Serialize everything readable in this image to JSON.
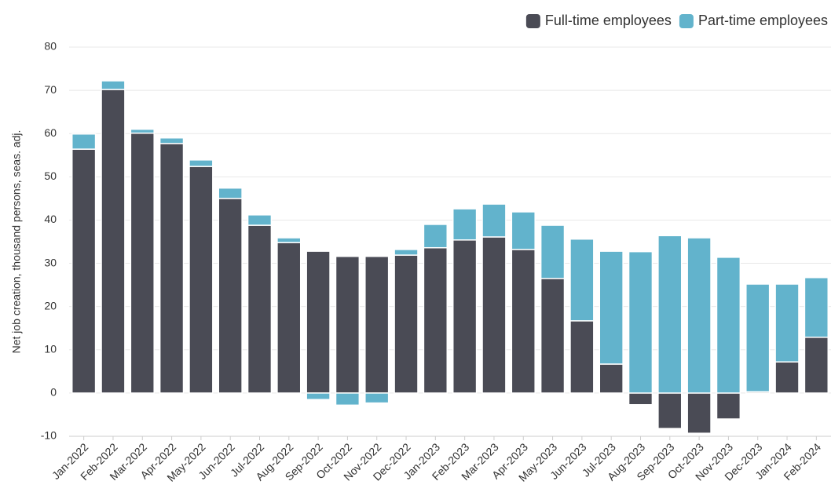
{
  "chart_data": {
    "type": "stacked_bar",
    "y_label": "Net job creation, thousand persons, seas. adj.",
    "categories": [
      "Jan-2022",
      "Feb-2022",
      "Mar-2022",
      "Apr-2022",
      "May-2022",
      "Jun-2022",
      "Jul-2022",
      "Aug-2022",
      "Sep-2022",
      "Oct-2022",
      "Nov-2022",
      "Dec-2022",
      "Jan-2023",
      "Feb-2023",
      "Mar-2023",
      "Apr-2023",
      "May-2023",
      "Jun-2023",
      "Jul-2023",
      "Aug-2023",
      "Sep-2023",
      "Oct-2023",
      "Nov-2023",
      "Dec-2023",
      "Jan-2024",
      "Feb-2024"
    ],
    "series": [
      {
        "name": "Full-time employees",
        "color": "#4a4b55",
        "values": [
          56.4,
          70.2,
          60.1,
          57.7,
          52.4,
          45.0,
          38.8,
          34.8,
          32.8,
          31.6,
          31.6,
          31.9,
          33.6,
          35.4,
          36.1,
          33.2,
          26.5,
          16.7,
          6.7,
          -2.7,
          -8.2,
          -9.3,
          -6.0,
          0.3,
          7.2,
          12.9
        ]
      },
      {
        "name": "Part-time employees",
        "color": "#62b3cc",
        "values": [
          3.5,
          2.0,
          0.9,
          1.3,
          1.5,
          2.4,
          2.4,
          1.1,
          -1.5,
          -2.8,
          -2.3,
          1.3,
          5.4,
          7.2,
          7.6,
          8.7,
          12.3,
          18.9,
          26.1,
          32.7,
          36.4,
          35.9,
          31.4,
          24.9,
          18.0,
          13.8
        ]
      }
    ],
    "ylim": [
      -10,
      80
    ],
    "yticks": [
      -10,
      0,
      10,
      20,
      30,
      40,
      50,
      60,
      70,
      80
    ],
    "grid": true,
    "legend": "top-right"
  }
}
